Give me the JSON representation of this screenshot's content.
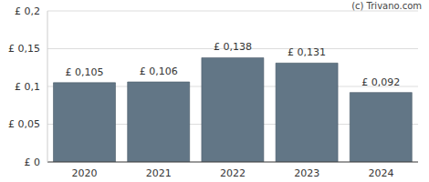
{
  "chart_data": {
    "type": "bar",
    "annotation": "(c) Trivano.com",
    "categories": [
      "2020",
      "2021",
      "2022",
      "2023",
      "2024"
    ],
    "values": [
      0.105,
      0.106,
      0.138,
      0.131,
      0.092
    ],
    "value_labels": [
      "£ 0,105",
      "£ 0,106",
      "£ 0,138",
      "£ 0,131",
      "£ 0,092"
    ],
    "data_labels": true,
    "color": "#627686",
    "ylim": [
      0,
      0.2
    ],
    "yticks": [
      {
        "value": 0,
        "label": "£ 0"
      },
      {
        "value": 0.05,
        "label": "£ 0,05"
      },
      {
        "value": 0.1,
        "label": "£ 0,1"
      },
      {
        "value": 0.15,
        "label": "£ 0,15"
      },
      {
        "value": 0.2,
        "label": "£ 0,2"
      }
    ],
    "grid": true
  }
}
